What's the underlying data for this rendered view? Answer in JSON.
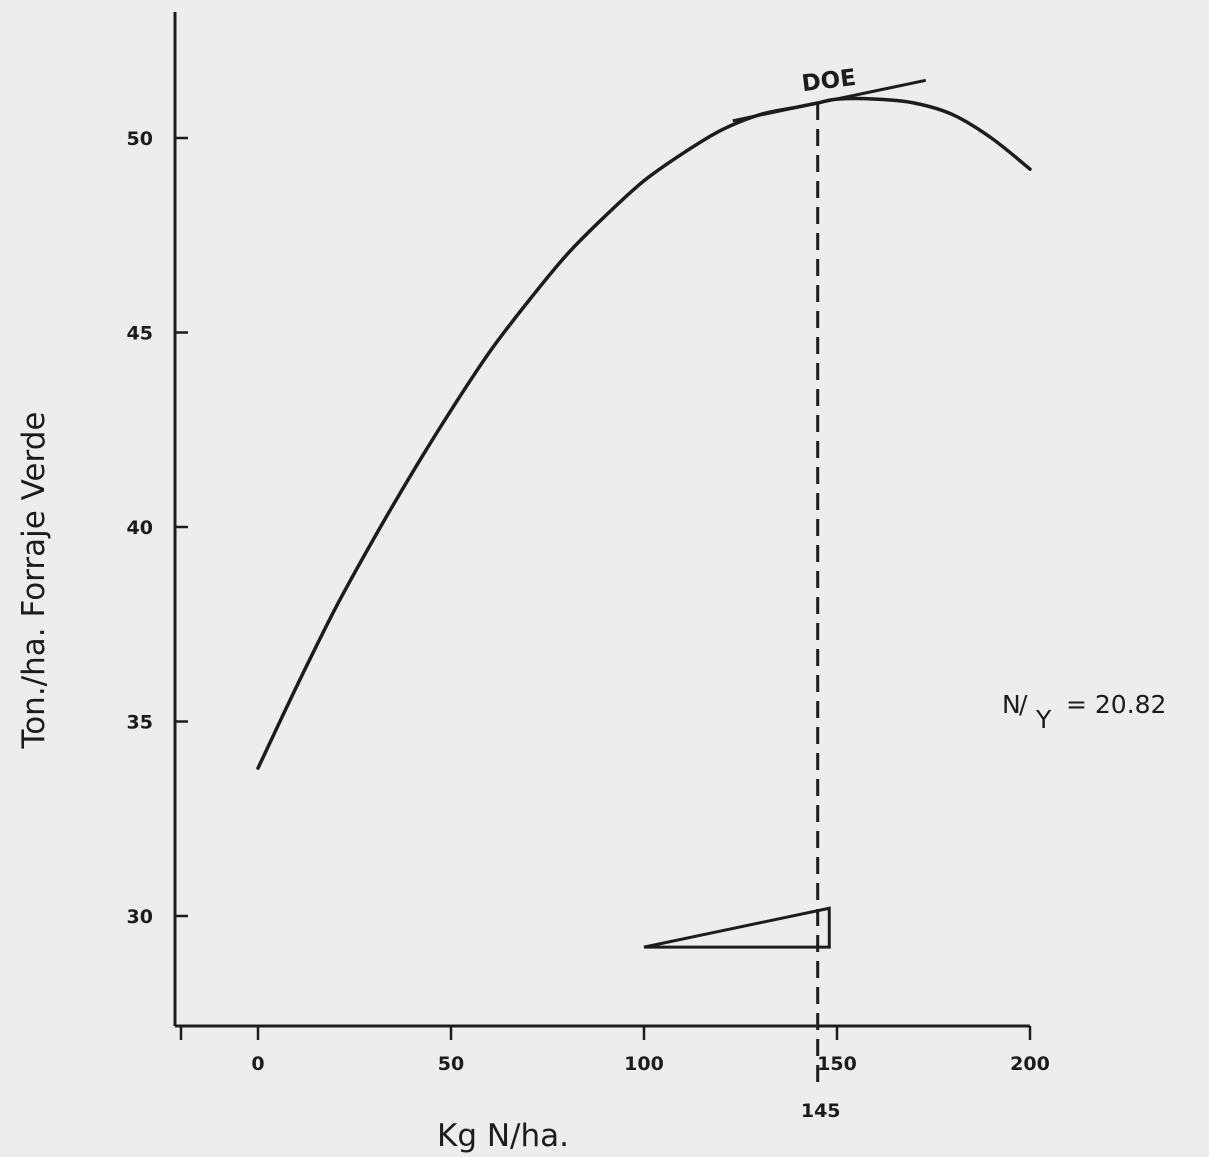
{
  "chart_data": {
    "type": "line",
    "title": "",
    "xlabel": "Kg N/ha.",
    "ylabel": "Ton./ha. Forraje Verde",
    "xlim": [
      -20,
      200
    ],
    "ylim": [
      27.2,
      53.5
    ],
    "x_ticks": [
      0,
      50,
      100,
      150,
      200
    ],
    "x_tick_labels": [
      "0",
      "50",
      "100",
      "150",
      "200"
    ],
    "y_ticks": [
      30,
      35,
      40,
      45,
      50
    ],
    "y_tick_labels": [
      "30",
      "35",
      "40",
      "45",
      "50"
    ],
    "grid": false,
    "series": [
      {
        "x": [
          0,
          10,
          20,
          30,
          40,
          50,
          60,
          70,
          80,
          90,
          100,
          110,
          120,
          130,
          140,
          145,
          150,
          160,
          170,
          180,
          190,
          200
        ],
        "y": [
          33.8,
          35.9,
          37.9,
          39.7,
          41.4,
          43.0,
          44.5,
          45.8,
          47.0,
          48.0,
          48.9,
          49.6,
          50.2,
          50.6,
          50.8,
          50.9,
          51.0,
          51.0,
          50.9,
          50.6,
          50.0,
          49.2
        ]
      }
    ],
    "annotations": {
      "doe_label": "DOE",
      "doe_x": 145,
      "doe_y": 50.9,
      "doe_x_label": "145",
      "tangent_slope": 0.0208,
      "tangent_x_range": [
        123,
        173
      ],
      "slope_triangle": {
        "x": [
          100,
          148
        ],
        "y_base": 29.2,
        "y_top": 30.2
      },
      "ratio_n": "N",
      "ratio_y": "Y",
      "ratio_value": "= 20.82"
    }
  },
  "colors": {
    "ink": "#1c1c1c",
    "paper": "#efedeb"
  }
}
